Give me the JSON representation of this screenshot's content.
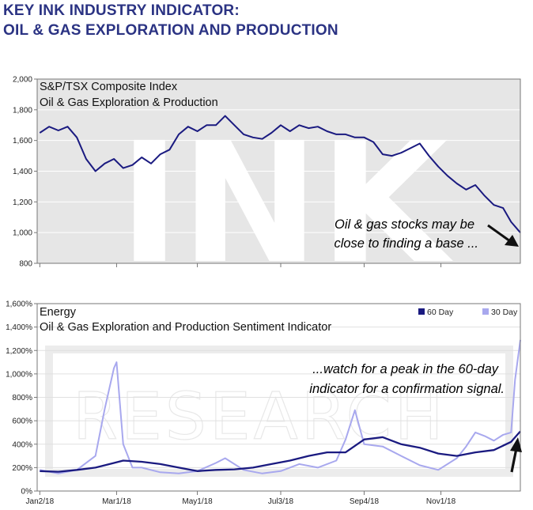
{
  "header": {
    "title_line1": "KEY INK INDUSTRY INDICATOR:",
    "title_line2": "OIL & GAS EXPLORATION AND PRODUCTION"
  },
  "colors": {
    "series_60": "#1a1a80",
    "series_30": "#a8a8ee",
    "title": "#2b3383",
    "top_bg": "#e6e6e6"
  },
  "chart_data": [
    {
      "type": "line",
      "title": "S&P/TSX Composite Index",
      "subtitle": "Oil & Gas Exploration & Production",
      "ylim": [
        800,
        2000
      ],
      "yticks": [
        800,
        1000,
        1200,
        1400,
        1600,
        1800,
        2000
      ],
      "ytick_labels": [
        "800",
        "1,000",
        "1,200",
        "1,400",
        "1,600",
        "1,800",
        "2,000"
      ],
      "grid": true,
      "annotation": [
        "Oil & gas stocks may be",
        "close to finding a base ..."
      ],
      "series": [
        {
          "x": [
            "2018-01-02",
            "2018-01-09",
            "2018-01-16",
            "2018-01-23",
            "2018-01-30",
            "2018-02-06",
            "2018-02-13",
            "2018-02-20",
            "2018-02-27",
            "2018-03-06",
            "2018-03-13",
            "2018-03-20",
            "2018-03-27",
            "2018-04-03",
            "2018-04-10",
            "2018-04-17",
            "2018-04-24",
            "2018-05-01",
            "2018-05-08",
            "2018-05-15",
            "2018-05-22",
            "2018-05-29",
            "2018-06-05",
            "2018-06-12",
            "2018-06-19",
            "2018-06-26",
            "2018-07-03",
            "2018-07-10",
            "2018-07-17",
            "2018-07-24",
            "2018-07-31",
            "2018-08-07",
            "2018-08-14",
            "2018-08-21",
            "2018-08-28",
            "2018-09-04",
            "2018-09-11",
            "2018-09-18",
            "2018-09-25",
            "2018-10-02",
            "2018-10-09",
            "2018-10-16",
            "2018-10-23",
            "2018-10-30",
            "2018-11-06",
            "2018-11-13",
            "2018-11-20",
            "2018-11-27",
            "2018-12-04",
            "2018-12-11",
            "2018-12-18",
            "2018-12-24",
            "2018-12-31"
          ],
          "values": [
            1650,
            1690,
            1665,
            1690,
            1620,
            1480,
            1400,
            1450,
            1480,
            1420,
            1440,
            1490,
            1450,
            1510,
            1540,
            1640,
            1690,
            1660,
            1700,
            1700,
            1760,
            1700,
            1640,
            1620,
            1610,
            1650,
            1700,
            1660,
            1700,
            1680,
            1690,
            1660,
            1640,
            1640,
            1620,
            1620,
            1590,
            1510,
            1500,
            1520,
            1550,
            1580,
            1500,
            1430,
            1370,
            1320,
            1280,
            1310,
            1240,
            1180,
            1160,
            1070,
            1000
          ]
        }
      ]
    },
    {
      "type": "line",
      "title": "Energy",
      "subtitle": "Oil & Gas Exploration and Production Sentiment Indicator",
      "ylim": [
        0,
        1600
      ],
      "yticks": [
        0,
        200,
        400,
        600,
        800,
        1000,
        1200,
        1400,
        1600
      ],
      "ytick_labels": [
        "0%",
        "200%",
        "400%",
        "600%",
        "800%",
        "1,000%",
        "1,200%",
        "1,400%",
        "1,600%"
      ],
      "x_tick_dates": [
        "2018-01-02",
        "2018-03-01",
        "2018-05-01",
        "2018-07-03",
        "2018-09-04",
        "2018-11-01"
      ],
      "x_tick_labels": [
        "Jan2/18",
        "Mar1/18",
        "May1/18",
        "Jul3/18",
        "Sep4/18",
        "Nov1/18"
      ],
      "grid": true,
      "legend_position": "top-right",
      "annotation": [
        "...watch for a peak in the 60-day",
        "indicator for a confirmation signal."
      ],
      "series": [
        {
          "name": "60 Day",
          "x": [
            "2018-01-02",
            "2018-01-16",
            "2018-01-30",
            "2018-02-13",
            "2018-02-27",
            "2018-03-06",
            "2018-03-20",
            "2018-04-03",
            "2018-04-17",
            "2018-05-01",
            "2018-05-15",
            "2018-05-29",
            "2018-06-12",
            "2018-06-26",
            "2018-07-10",
            "2018-07-24",
            "2018-08-07",
            "2018-08-21",
            "2018-09-04",
            "2018-09-18",
            "2018-10-02",
            "2018-10-16",
            "2018-10-30",
            "2018-11-13",
            "2018-11-27",
            "2018-12-11",
            "2018-12-24",
            "2018-12-31"
          ],
          "values": [
            170,
            165,
            180,
            200,
            240,
            260,
            250,
            230,
            200,
            170,
            180,
            185,
            200,
            230,
            260,
            300,
            330,
            330,
            440,
            460,
            400,
            370,
            320,
            300,
            330,
            350,
            420,
            510
          ]
        },
        {
          "name": "30 Day",
          "x": [
            "2018-01-02",
            "2018-01-16",
            "2018-01-30",
            "2018-02-13",
            "2018-02-20",
            "2018-02-27",
            "2018-03-01",
            "2018-03-06",
            "2018-03-13",
            "2018-03-20",
            "2018-04-03",
            "2018-04-17",
            "2018-05-01",
            "2018-05-15",
            "2018-05-22",
            "2018-06-05",
            "2018-06-19",
            "2018-07-03",
            "2018-07-17",
            "2018-07-31",
            "2018-08-14",
            "2018-08-21",
            "2018-08-28",
            "2018-09-04",
            "2018-09-18",
            "2018-10-02",
            "2018-10-16",
            "2018-10-30",
            "2018-11-13",
            "2018-11-20",
            "2018-11-27",
            "2018-12-04",
            "2018-12-11",
            "2018-12-18",
            "2018-12-24",
            "2018-12-27",
            "2018-12-31"
          ],
          "values": [
            180,
            150,
            180,
            300,
            700,
            1050,
            1100,
            400,
            200,
            200,
            160,
            150,
            170,
            240,
            280,
            180,
            150,
            170,
            230,
            200,
            260,
            440,
            690,
            400,
            380,
            300,
            220,
            180,
            280,
            380,
            500,
            470,
            430,
            480,
            500,
            950,
            1290
          ]
        }
      ]
    }
  ]
}
